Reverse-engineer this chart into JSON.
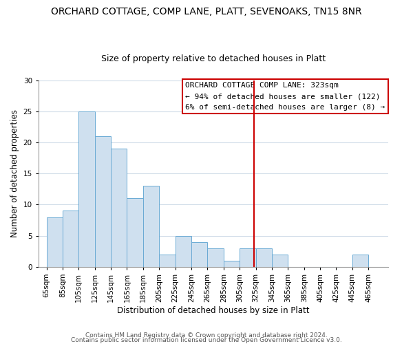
{
  "title": "ORCHARD COTTAGE, COMP LANE, PLATT, SEVENOAKS, TN15 8NR",
  "subtitle": "Size of property relative to detached houses in Platt",
  "xlabel": "Distribution of detached houses by size in Platt",
  "ylabel": "Number of detached properties",
  "bar_color": "#cfe0ef",
  "bar_edge_color": "#6aaad4",
  "bin_starts": [
    65,
    85,
    105,
    125,
    145,
    165,
    185,
    205,
    225,
    245,
    265,
    285,
    305,
    325,
    345,
    365,
    385,
    405,
    425,
    445,
    465
  ],
  "bin_width": 20,
  "bar_heights": [
    8,
    9,
    25,
    21,
    19,
    11,
    13,
    2,
    5,
    4,
    3,
    1,
    3,
    3,
    2,
    0,
    0,
    0,
    0,
    2,
    0
  ],
  "tick_labels": [
    "65sqm",
    "85sqm",
    "105sqm",
    "125sqm",
    "145sqm",
    "165sqm",
    "185sqm",
    "205sqm",
    "225sqm",
    "245sqm",
    "265sqm",
    "285sqm",
    "305sqm",
    "325sqm",
    "345sqm",
    "365sqm",
    "385sqm",
    "405sqm",
    "425sqm",
    "445sqm",
    "465sqm"
  ],
  "vline_x": 323,
  "vline_color": "#cc0000",
  "ylim": [
    0,
    30
  ],
  "yticks": [
    0,
    5,
    10,
    15,
    20,
    25,
    30
  ],
  "legend_title": "ORCHARD COTTAGE COMP LANE: 323sqm",
  "legend_line1": "← 94% of detached houses are smaller (122)",
  "legend_line2": "6% of semi-detached houses are larger (8) →",
  "legend_box_color": "#ffffff",
  "legend_box_edge": "#cc0000",
  "footnote1": "Contains HM Land Registry data © Crown copyright and database right 2024.",
  "footnote2": "Contains public sector information licensed under the Open Government Licence v3.0.",
  "background_color": "#ffffff",
  "grid_color": "#d0dce8",
  "title_fontsize": 10,
  "subtitle_fontsize": 9,
  "axis_label_fontsize": 8.5,
  "tick_fontsize": 7.5,
  "legend_fontsize": 8,
  "footnote_fontsize": 6.5
}
